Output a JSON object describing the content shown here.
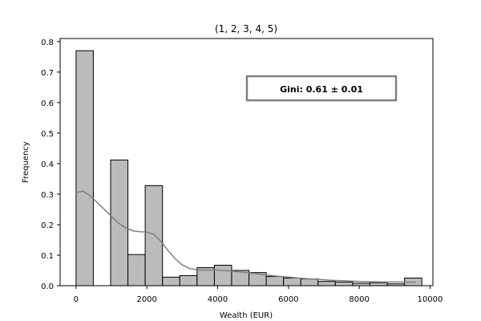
{
  "chart_data": {
    "type": "bar",
    "title": "(1, 2, 3, 4, 5)",
    "xlabel": "Wealth (EUR)",
    "ylabel": "Frequency",
    "xlim": [
      -450,
      10080
    ],
    "ylim": [
      0,
      0.81
    ],
    "x_ticks": [
      0,
      2000,
      4000,
      6000,
      8000,
      10000
    ],
    "x_tick_labels": [
      "0",
      "2000",
      "4000",
      "6000",
      "8000",
      "10000"
    ],
    "y_ticks": [
      0.0,
      0.1,
      0.2,
      0.3,
      0.4,
      0.5,
      0.6,
      0.7,
      0.8
    ],
    "y_tick_labels": [
      "0.0",
      "0.1",
      "0.2",
      "0.3",
      "0.4",
      "0.5",
      "0.6",
      "0.7",
      "0.8"
    ],
    "bins": [
      {
        "x0": 0,
        "x1": 488,
        "value": 0.77
      },
      {
        "x0": 488,
        "x1": 977,
        "value": 0.0
      },
      {
        "x0": 977,
        "x1": 1465,
        "value": 0.412
      },
      {
        "x0": 1465,
        "x1": 1953,
        "value": 0.102
      },
      {
        "x0": 1953,
        "x1": 2442,
        "value": 0.328
      },
      {
        "x0": 2442,
        "x1": 2930,
        "value": 0.028
      },
      {
        "x0": 2930,
        "x1": 3418,
        "value": 0.033
      },
      {
        "x0": 3418,
        "x1": 3907,
        "value": 0.059
      },
      {
        "x0": 3907,
        "x1": 4395,
        "value": 0.067
      },
      {
        "x0": 4395,
        "x1": 4884,
        "value": 0.05
      },
      {
        "x0": 4884,
        "x1": 5372,
        "value": 0.043
      },
      {
        "x0": 5372,
        "x1": 5860,
        "value": 0.03
      },
      {
        "x0": 5860,
        "x1": 6349,
        "value": 0.025
      },
      {
        "x0": 6349,
        "x1": 6837,
        "value": 0.022
      },
      {
        "x0": 6837,
        "x1": 7325,
        "value": 0.014
      },
      {
        "x0": 7325,
        "x1": 7814,
        "value": 0.012
      },
      {
        "x0": 7814,
        "x1": 8302,
        "value": 0.008
      },
      {
        "x0": 8302,
        "x1": 8790,
        "value": 0.01
      },
      {
        "x0": 8790,
        "x1": 9279,
        "value": 0.006
      },
      {
        "x0": 9279,
        "x1": 9767,
        "value": 0.025
      }
    ],
    "kde": {
      "x": [
        0,
        200,
        400,
        600,
        800,
        1000,
        1200,
        1400,
        1600,
        1800,
        2000,
        2200,
        2400,
        2600,
        2800,
        3000,
        3200,
        3400,
        3600,
        3800,
        4000,
        4400,
        4800,
        5200,
        5600,
        6000,
        6400,
        6800,
        7200,
        7600,
        8000,
        8400,
        8800,
        9200,
        9600
      ],
      "y": [
        0.305,
        0.31,
        0.295,
        0.272,
        0.25,
        0.227,
        0.205,
        0.19,
        0.18,
        0.177,
        0.176,
        0.168,
        0.145,
        0.115,
        0.088,
        0.068,
        0.057,
        0.052,
        0.051,
        0.051,
        0.051,
        0.048,
        0.043,
        0.037,
        0.032,
        0.028,
        0.024,
        0.021,
        0.018,
        0.016,
        0.014,
        0.013,
        0.012,
        0.012,
        0.011
      ]
    },
    "bar_color": "#bbbbbb",
    "bar_edge_color": "#000000",
    "kde_color": "#808080",
    "annotation": {
      "text": "Gini: 0.61 ± 0.01",
      "position": "top-right",
      "border_color": "#808080"
    }
  }
}
